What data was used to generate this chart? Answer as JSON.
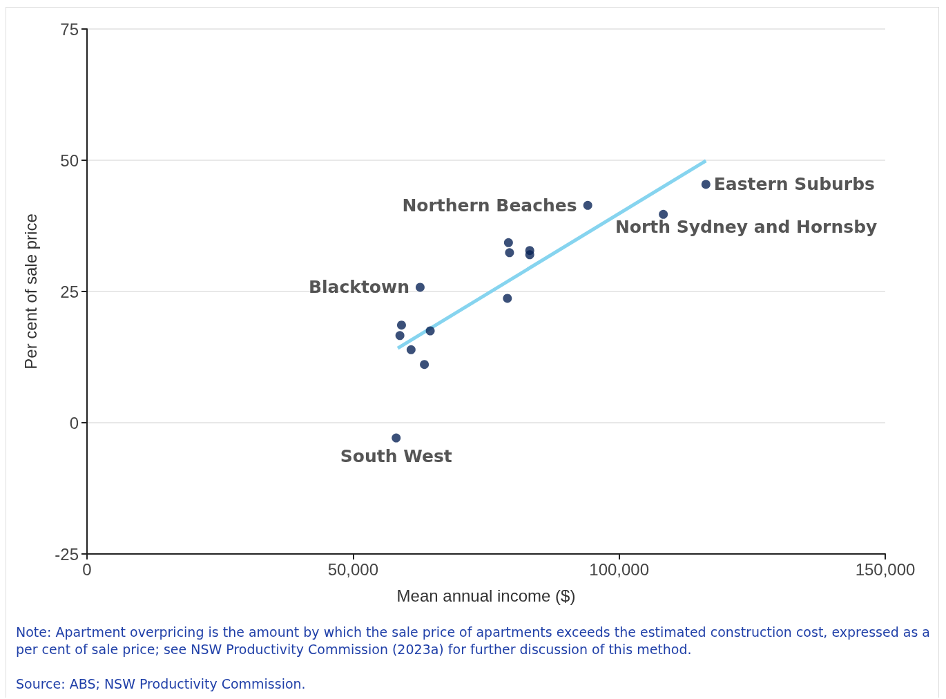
{
  "chart_data": {
    "type": "scatter",
    "xlabel": "Mean annual income ($)",
    "ylabel": "Per cent of sale price",
    "xlim": [
      0,
      150000
    ],
    "xticks": [
      {
        "value": 0,
        "label": "0"
      },
      {
        "value": 50000,
        "label": "50,000"
      },
      {
        "value": 100000,
        "label": "100,000"
      },
      {
        "value": 150000,
        "label": "150,000"
      }
    ],
    "ylim": [
      -25,
      75
    ],
    "yticks": [
      -25,
      0,
      25,
      50,
      75
    ],
    "grid": "y",
    "marker": "circle",
    "series": [
      {
        "color": "#0a2458",
        "x": [
          58100,
          58800,
          59100,
          60900,
          62600,
          63400,
          64500,
          79000,
          79200,
          79400,
          83200,
          83200,
          94100,
          108300,
          116300
        ],
        "values": [
          -2.9,
          16.6,
          18.6,
          13.9,
          25.8,
          11.1,
          17.5,
          23.7,
          34.3,
          32.4,
          32.8,
          32.0,
          41.4,
          39.7,
          45.4
        ]
      },
      {
        "type": "line",
        "color": "#86d4ef",
        "x": [
          58400,
          116300
        ],
        "values": [
          14.2,
          49.9
        ],
        "marker": "none"
      }
    ],
    "annotations": [
      {
        "text": "Blacktown",
        "x": 62600,
        "y": 25.8
      },
      {
        "text": "Northern Beaches",
        "x": 94100,
        "y": 41.4
      },
      {
        "text": "Eastern Suburbs",
        "x": 116300,
        "y": 45.4
      },
      {
        "text": "North Sydney and Hornsby",
        "x": 108300,
        "y": 39.7
      },
      {
        "text": "South West",
        "x": 58100,
        "y": -2.9
      },
      "Note: Apartment overpricing is the amount by which the sale price of apartments exceeds the estimated construction cost, expressed as a per cent of sale price; see NSW Productivity Commission (2023a) for further discussion of this method.",
      "Source: ABS; NSW Productivity Commission."
    ]
  }
}
